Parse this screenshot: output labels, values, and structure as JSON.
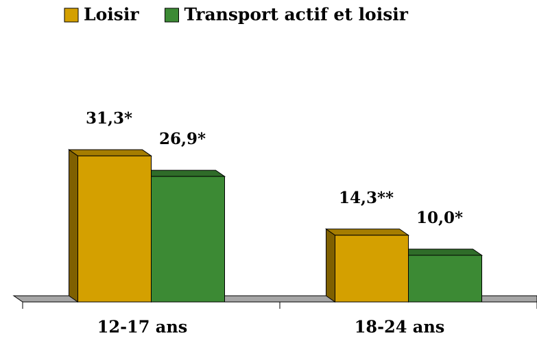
{
  "chart_data": {
    "type": "bar3d",
    "categories": [
      "12-17 ans",
      "18-24 ans"
    ],
    "series": [
      {
        "name": "Loisir",
        "color": "#d4a000",
        "values": [
          31.3,
          14.3
        ],
        "value_labels": [
          "31,3*",
          "14,3**"
        ]
      },
      {
        "name": "Transport actif et loisir",
        "color": "#3c8a34",
        "values": [
          26.9,
          10.0
        ],
        "value_labels": [
          "26,9*",
          "10,0*"
        ]
      }
    ],
    "ylim": [
      0,
      35
    ],
    "legend": "top"
  }
}
